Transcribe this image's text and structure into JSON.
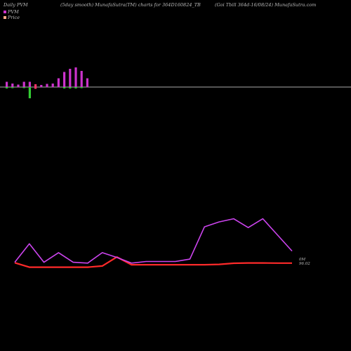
{
  "header": {
    "left": "Daily PVM",
    "middle": "(5day smooth) MunafaSutra(TM) charts for 364D160824_TB",
    "right": "(Goi  Tbill 364d-16/08/24) MunafaSutra.com"
  },
  "legend": [
    {
      "label": "PVM",
      "color": "#cc33cc"
    },
    {
      "label": "Price",
      "color": "#ffaa88"
    }
  ],
  "colors": {
    "bar_up": "#cc33cc",
    "bar_down": "#ff3366",
    "bar_green": "#33cc33",
    "price_line": "#ff2a2a",
    "pvm_line": "#cc44ee",
    "baseline": "#aaaaaa"
  },
  "chart_data": [
    {
      "type": "bar",
      "title": "Daily PVM",
      "series": [
        {
          "name": "PVM",
          "values": [
            1.5,
            1,
            0.7,
            1.5,
            1.5,
            0.8,
            0.6,
            0.9,
            1,
            2.5,
            4.3,
            5.2,
            5.6,
            4.6,
            2.5
          ],
          "colors": [
            "bar_up",
            "bar_up",
            "bar_up",
            "bar_up",
            "bar_up",
            "bar_down",
            "bar_up",
            "bar_up",
            "bar_up",
            "bar_up",
            "bar_up",
            "bar_up",
            "bar_up",
            "bar_up",
            "bar_up"
          ],
          "neg": [
            -0.4,
            -0.3,
            0,
            -0.3,
            -3.2,
            -0.5,
            0,
            0,
            0,
            0,
            -0.4,
            -0.4,
            -0.4,
            -0.3,
            0
          ],
          "neg_colors": [
            "bar_green",
            "bar_green",
            "bar_up",
            "bar_green",
            "bar_green",
            "bar_down",
            "bar_up",
            "bar_up",
            "bar_up",
            "bar_up",
            "bar_green",
            "bar_green",
            "bar_green",
            "bar_green",
            "bar_up"
          ]
        }
      ],
      "ylim": [
        -4,
        7
      ]
    },
    {
      "type": "line",
      "series": [
        {
          "name": "PVM",
          "values": [
            0.45,
            1.6,
            0.45,
            1.05,
            0.45,
            0.4,
            1.05,
            0.75,
            0.4,
            0.5,
            0.5,
            0.5,
            0.65,
            2.65,
            2.95,
            3.15,
            2.6,
            3.15,
            2.15,
            1.15
          ]
        },
        {
          "name": "Price",
          "values": [
            0.42,
            0.15,
            0.15,
            0.15,
            0.15,
            0.15,
            0.22,
            0.78,
            0.3,
            0.3,
            0.3,
            0.3,
            0.3,
            0.3,
            0.32,
            0.39,
            0.41,
            0.41,
            0.4,
            0.4
          ]
        }
      ],
      "end_labels": [
        "0M",
        "96.02"
      ],
      "ylim": [
        0,
        3.5
      ]
    }
  ]
}
